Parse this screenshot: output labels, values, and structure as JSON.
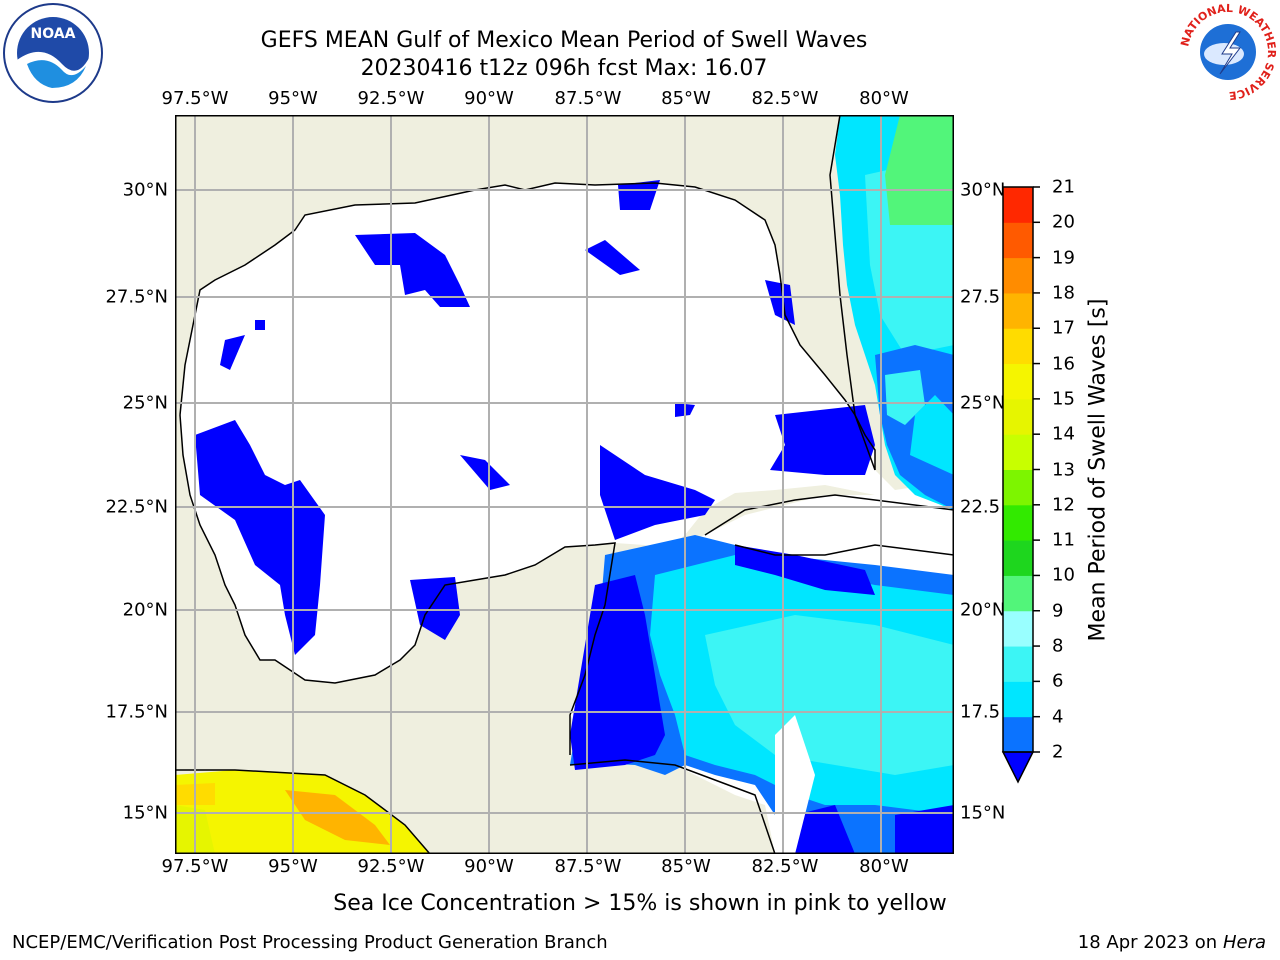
{
  "title": {
    "line1": "GEFS MEAN Gulf of Mexico Mean Period of Swell Waves",
    "line2": "20230416 t12z 096h fcst   Max: 16.07"
  },
  "axes": {
    "lon_labels": [
      "97.5°W",
      "95°W",
      "92.5°W",
      "90°W",
      "87.5°W",
      "85°W",
      "82.5°W",
      "80°W"
    ],
    "lat_labels_left": [
      "30°N",
      "27.5°N",
      "25°N",
      "22.5°N",
      "20°N",
      "17.5°N",
      "15°N"
    ],
    "lat_labels_right": [
      "30°N",
      "27.5",
      "25°N",
      "22.5",
      "20°N",
      "17.5",
      "15°N"
    ]
  },
  "colorbar": {
    "label": "Mean Period of Swell Waves [s]",
    "ticks": [
      "2",
      "4",
      "6",
      "8",
      "9",
      "10",
      "11",
      "12",
      "13",
      "14",
      "15",
      "16",
      "17",
      "18",
      "19",
      "20",
      "21"
    ],
    "colors": [
      "#0b73ff",
      "#00e6ff",
      "#3cf5f5",
      "#99ffff",
      "#52f57a",
      "#1ed61e",
      "#32ea00",
      "#7df500",
      "#c8ff00",
      "#e6f500",
      "#f5f500",
      "#ffdc00",
      "#ffb400",
      "#ff8c00",
      "#ff5a00",
      "#ff2800"
    ],
    "extend_color": "#0000ff"
  },
  "note": "Sea Ice Concentration > 15% is shown in pink to yellow",
  "footer": {
    "left": "NCEP/EMC/Verification Post Processing Product Generation Branch",
    "right_date": "18 Apr 2023 on ",
    "right_machine": "Hera"
  },
  "logos": {
    "left": "noaa-logo",
    "right": "nws-logo",
    "right_text": "NATIONAL WEATHER SERVICE"
  },
  "colors": {
    "land": "#efefdf",
    "ocean_white": "#ffffff",
    "grid": "#b0b0b0"
  }
}
